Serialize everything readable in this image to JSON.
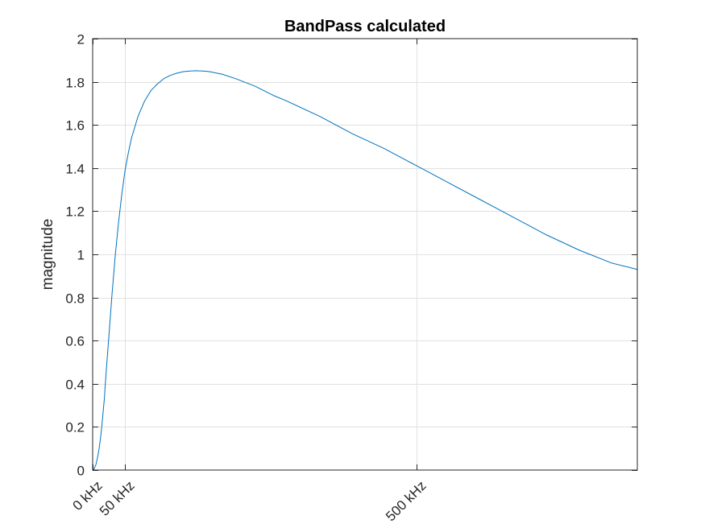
{
  "chart_data": {
    "type": "line",
    "title": "BandPass calculated",
    "xlabel": "",
    "ylabel": "magnitude",
    "xlim": [
      0,
      840
    ],
    "ylim": [
      0,
      2
    ],
    "x_ticks": [
      {
        "value": 0,
        "label": "0 kHz"
      },
      {
        "value": 50,
        "label": "50 kHz"
      },
      {
        "value": 500,
        "label": "500 kHz"
      }
    ],
    "y_ticks": [
      {
        "value": 0,
        "label": "0"
      },
      {
        "value": 0.2,
        "label": "0.2"
      },
      {
        "value": 0.4,
        "label": "0.4"
      },
      {
        "value": 0.6,
        "label": "0.6"
      },
      {
        "value": 0.8,
        "label": "0.8"
      },
      {
        "value": 1,
        "label": "1"
      },
      {
        "value": 1.2,
        "label": "1.2"
      },
      {
        "value": 1.4,
        "label": "1.4"
      },
      {
        "value": 1.6,
        "label": "1.6"
      },
      {
        "value": 1.8,
        "label": "1.8"
      },
      {
        "value": 2,
        "label": "2"
      }
    ],
    "grid": true,
    "series": [
      {
        "color": "#0072BD",
        "x": [
          0,
          2,
          5,
          8,
          10,
          13,
          15,
          18,
          20,
          25,
          30,
          35,
          40,
          45,
          50,
          55,
          60,
          70,
          80,
          90,
          100,
          110,
          120,
          130,
          140,
          150,
          160,
          170,
          180,
          200,
          220,
          250,
          280,
          300,
          350,
          400,
          450,
          500,
          550,
          600,
          650,
          700,
          750,
          800,
          840
        ],
        "y": [
          0,
          0.004,
          0.025,
          0.065,
          0.1,
          0.17,
          0.23,
          0.33,
          0.42,
          0.62,
          0.82,
          1.0,
          1.15,
          1.28,
          1.39,
          1.47,
          1.54,
          1.64,
          1.71,
          1.76,
          1.79,
          1.815,
          1.83,
          1.84,
          1.847,
          1.85,
          1.851,
          1.85,
          1.847,
          1.835,
          1.815,
          1.78,
          1.735,
          1.71,
          1.64,
          1.56,
          1.49,
          1.41,
          1.33,
          1.25,
          1.17,
          1.09,
          1.02,
          0.96,
          0.93
        ]
      }
    ]
  }
}
